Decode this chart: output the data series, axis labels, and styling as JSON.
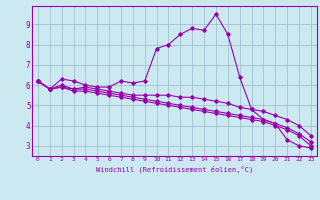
{
  "title": "",
  "xlabel": "Windchill (Refroidissement éolien,°C)",
  "background_color": "#cce8f0",
  "line_color": "#9900aa",
  "grid_color": "#99bbcc",
  "xlim": [
    -0.5,
    23.5
  ],
  "ylim": [
    2.5,
    9.9
  ],
  "xticks": [
    0,
    1,
    2,
    3,
    4,
    5,
    6,
    7,
    8,
    9,
    10,
    11,
    12,
    13,
    14,
    15,
    16,
    17,
    18,
    19,
    20,
    21,
    22,
    23
  ],
  "yticks": [
    3,
    4,
    5,
    6,
    7,
    8,
    9
  ],
  "lines": [
    [
      6.2,
      5.8,
      6.3,
      6.2,
      6.0,
      5.9,
      5.9,
      6.2,
      6.1,
      6.2,
      7.8,
      8.0,
      8.5,
      8.8,
      8.7,
      9.5,
      8.5,
      6.4,
      4.8,
      4.3,
      4.1,
      3.3,
      3.0,
      2.9
    ],
    [
      6.2,
      5.8,
      6.0,
      5.8,
      5.9,
      5.8,
      5.7,
      5.6,
      5.5,
      5.5,
      5.5,
      5.5,
      5.4,
      5.4,
      5.3,
      5.2,
      5.1,
      4.9,
      4.8,
      4.7,
      4.5,
      4.3,
      4.0,
      3.5
    ],
    [
      6.2,
      5.8,
      5.9,
      5.8,
      5.8,
      5.7,
      5.6,
      5.5,
      5.4,
      5.3,
      5.2,
      5.1,
      5.0,
      4.9,
      4.8,
      4.7,
      4.6,
      4.5,
      4.4,
      4.3,
      4.1,
      3.9,
      3.6,
      3.2
    ],
    [
      6.2,
      5.8,
      5.9,
      5.7,
      5.7,
      5.6,
      5.5,
      5.4,
      5.3,
      5.2,
      5.1,
      5.0,
      4.9,
      4.8,
      4.7,
      4.6,
      4.5,
      4.4,
      4.3,
      4.2,
      4.0,
      3.8,
      3.5,
      3.0
    ]
  ]
}
